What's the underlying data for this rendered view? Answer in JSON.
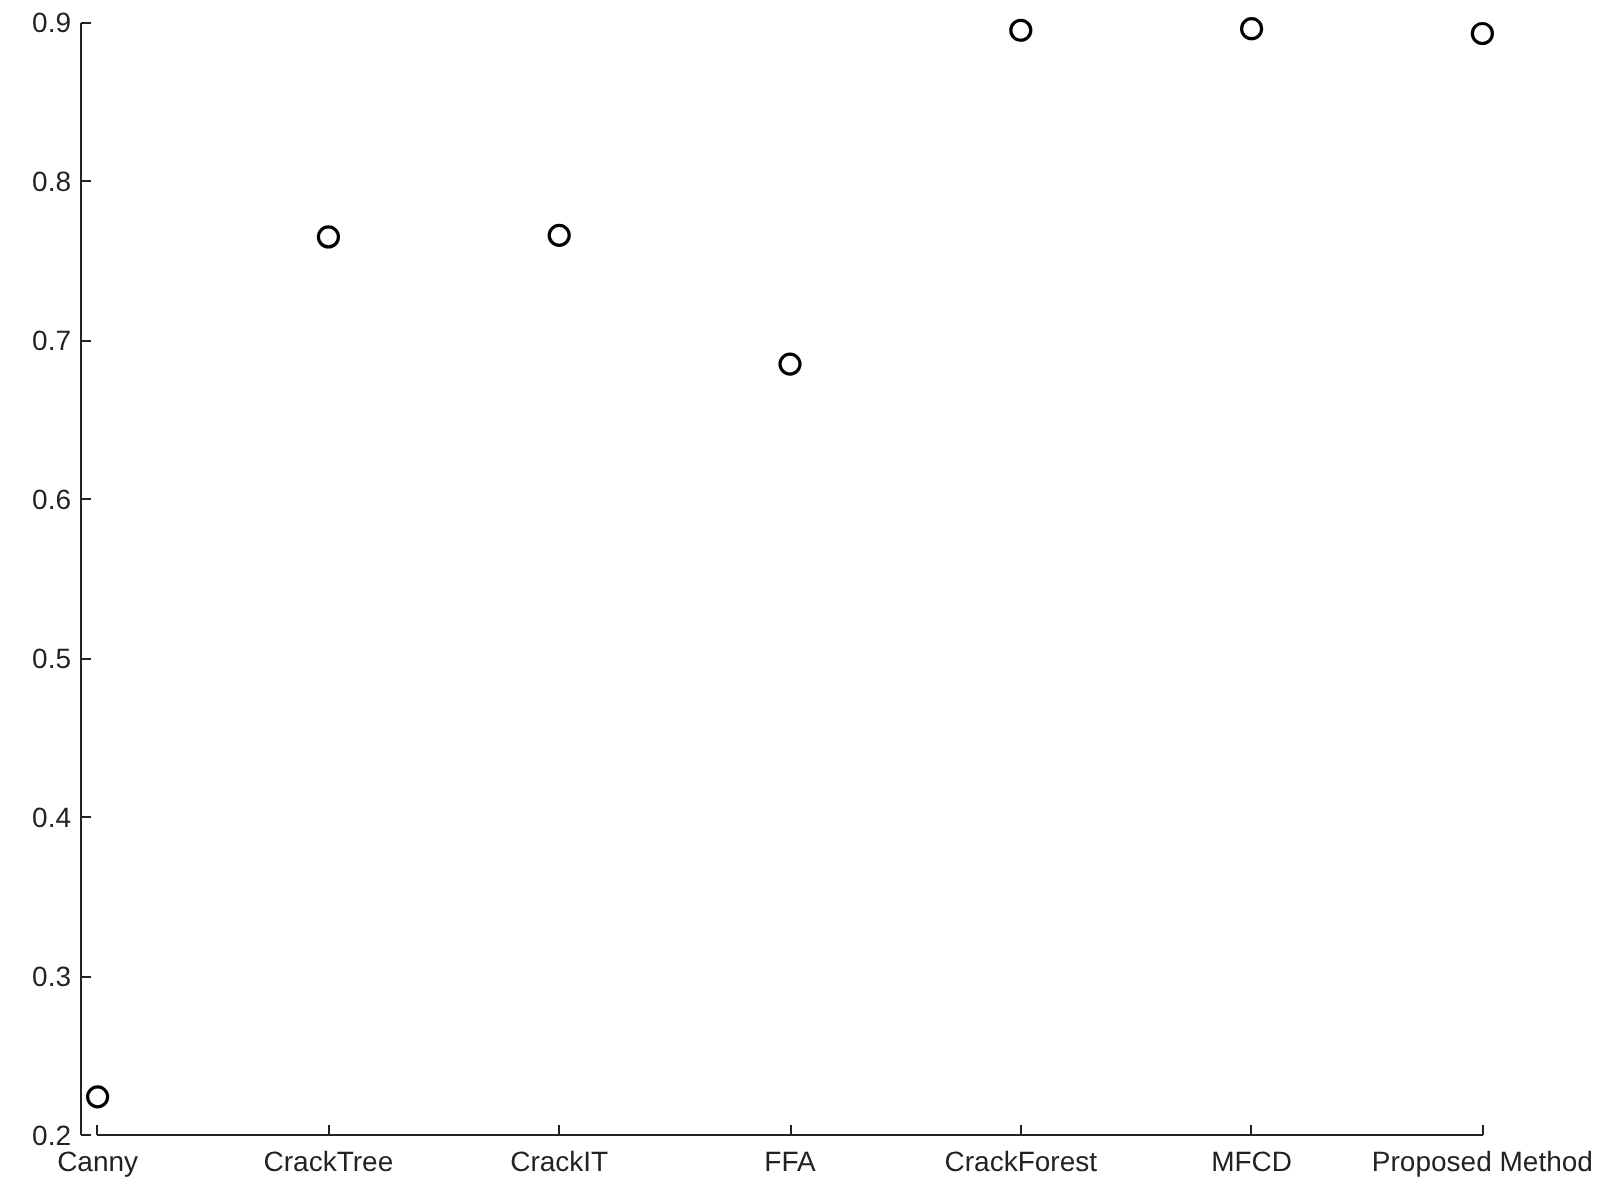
{
  "chart_data": {
    "type": "scatter",
    "categories": [
      "Canny",
      "CrackTree",
      "CrackIT",
      "FFA",
      "CrackForest",
      "MFCD",
      "Proposed Method"
    ],
    "values": [
      0.224,
      0.765,
      0.766,
      0.685,
      0.895,
      0.896,
      0.893
    ],
    "color": "#000000",
    "marker": "circle",
    "ylim": [
      0.2,
      0.9
    ],
    "yticks": [
      0.2,
      0.3,
      0.4,
      0.5,
      0.6,
      0.7,
      0.8,
      0.9
    ],
    "grid": false
  }
}
